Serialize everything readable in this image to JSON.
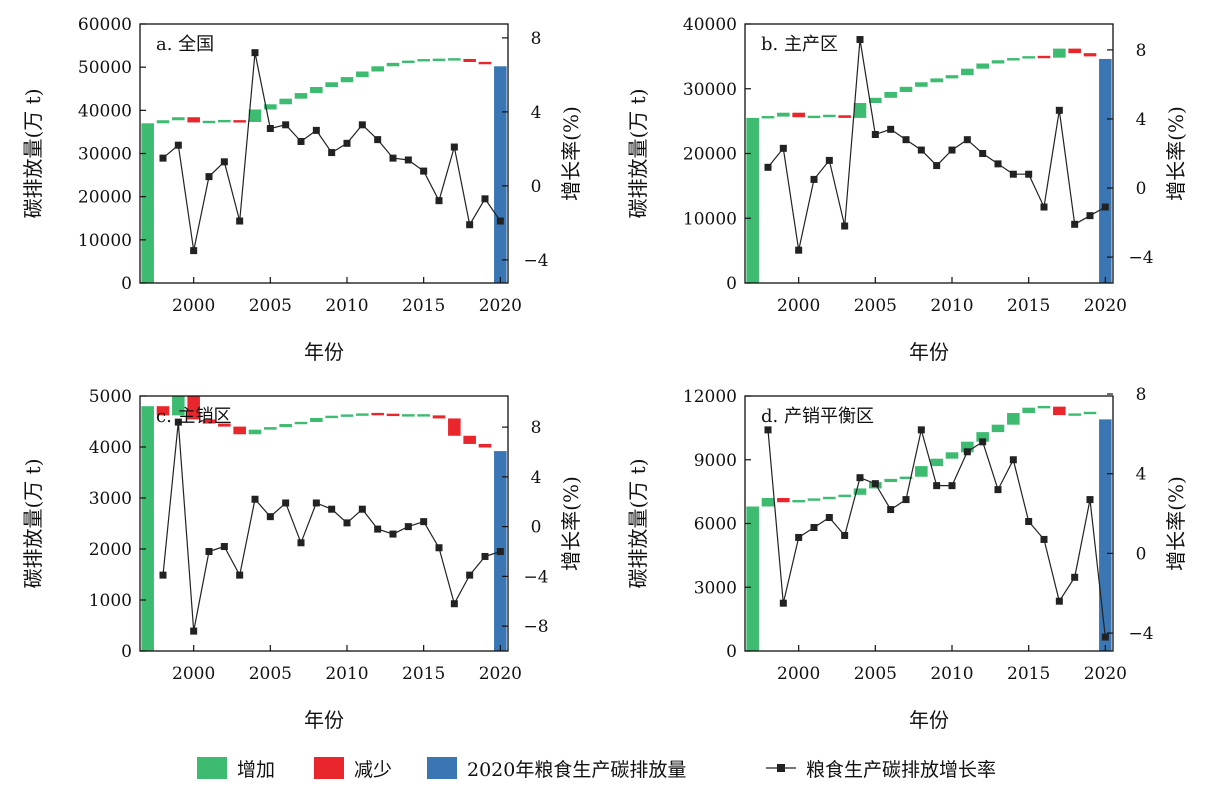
{
  "colors": {
    "increase": "#3dbb71",
    "decrease": "#e8262b",
    "total": "#3b76b4",
    "line": "#222222"
  },
  "legend": [
    {
      "key": "increase",
      "label": "增加"
    },
    {
      "key": "decrease",
      "label": "减少"
    },
    {
      "key": "total",
      "label": "2020年粮食生产碳排放量"
    },
    {
      "key": "line",
      "label": "粮食生产碳排放增长率"
    }
  ],
  "chart_data": [
    {
      "type": "waterfall+line",
      "title": "a. 全国",
      "xlabel": "年份",
      "ylabel": "碳排放量(万 t)",
      "y2label": "增长率(%)",
      "xlim": [
        1996.5,
        2020.5
      ],
      "x_ticks": [
        2000,
        2005,
        2010,
        2015,
        2020
      ],
      "ylim": [
        0,
        60000
      ],
      "y_ticks": [
        0,
        10000,
        20000,
        30000,
        40000,
        50000,
        60000
      ],
      "y2lim": [
        -5.25,
        8.75
      ],
      "y2_ticks": [
        -4,
        0,
        4,
        8
      ],
      "years": [
        1997,
        1998,
        1999,
        2000,
        2001,
        2002,
        2003,
        2004,
        2005,
        2006,
        2007,
        2008,
        2009,
        2010,
        2011,
        2012,
        2013,
        2014,
        2015,
        2016,
        2017,
        2018,
        2019,
        2020
      ],
      "emissions": [
        37000,
        37700,
        38400,
        37200,
        37400,
        37600,
        37300,
        40200,
        41400,
        42700,
        44000,
        45400,
        46500,
        47700,
        49000,
        50200,
        51000,
        51500,
        51700,
        51700,
        51900,
        51200,
        50700,
        50200
      ],
      "growth_rate": [
        null,
        1.5,
        2.2,
        -3.5,
        0.5,
        1.3,
        -1.9,
        7.2,
        3.1,
        3.3,
        2.4,
        3.0,
        1.8,
        2.3,
        3.3,
        2.5,
        1.5,
        1.4,
        0.8,
        -0.8,
        2.1,
        -2.1,
        -0.7,
        -1.9
      ]
    },
    {
      "type": "waterfall+line",
      "title": "b. 主产区",
      "xlabel": "年份",
      "ylabel": "碳排放量(万 t)",
      "y2label": "增长率(%)",
      "xlim": [
        1996.5,
        2020.5
      ],
      "x_ticks": [
        2000,
        2005,
        2010,
        2015,
        2020
      ],
      "ylim": [
        0,
        40000
      ],
      "y_ticks": [
        0,
        10000,
        20000,
        30000,
        40000
      ],
      "y2lim": [
        -5.5,
        9.5
      ],
      "y2_ticks": [
        -4,
        0,
        4,
        8
      ],
      "years": [
        1997,
        1998,
        1999,
        2000,
        2001,
        2002,
        2003,
        2004,
        2005,
        2006,
        2007,
        2008,
        2009,
        2010,
        2011,
        2012,
        2013,
        2014,
        2015,
        2016,
        2017,
        2018,
        2019,
        2020
      ],
      "emissions": [
        25500,
        25700,
        26300,
        25600,
        25700,
        25900,
        25500,
        27800,
        28600,
        29500,
        30300,
        31000,
        31600,
        32100,
        33100,
        33900,
        34400,
        34700,
        35000,
        34800,
        36200,
        35500,
        35000,
        34600
      ],
      "growth_rate": [
        null,
        1.2,
        2.3,
        -3.6,
        0.5,
        1.6,
        -2.2,
        8.6,
        3.1,
        3.4,
        2.8,
        2.2,
        1.3,
        2.2,
        2.8,
        2.0,
        1.4,
        0.8,
        0.8,
        -1.1,
        4.5,
        -2.1,
        -1.6,
        -1.1
      ]
    },
    {
      "type": "waterfall+line",
      "title": "c. 主销区",
      "xlabel": "年份",
      "ylabel": "碳排放量(万 t)",
      "y2label": "增长率(%)",
      "xlim": [
        1996.5,
        2020.5
      ],
      "x_ticks": [
        2000,
        2005,
        2010,
        2015,
        2020
      ],
      "ylim": [
        0,
        5000
      ],
      "y_ticks": [
        0,
        1000,
        2000,
        3000,
        4000,
        5000
      ],
      "y2lim": [
        -10,
        10.5
      ],
      "y2_ticks": [
        -8,
        -4,
        0,
        4,
        8
      ],
      "years": [
        1997,
        1998,
        1999,
        2000,
        2001,
        2002,
        2003,
        2004,
        2005,
        2006,
        2007,
        2008,
        2009,
        2010,
        2011,
        2012,
        2013,
        2014,
        2015,
        2016,
        2017,
        2018,
        2019,
        2020
      ],
      "emissions": [
        4800,
        4620,
        5000,
        4540,
        4460,
        4400,
        4250,
        4340,
        4390,
        4450,
        4490,
        4570,
        4610,
        4620,
        4650,
        4640,
        4620,
        4620,
        4620,
        4560,
        4220,
        4060,
        3990,
        3920
      ],
      "growth_rate": [
        null,
        -3.9,
        8.4,
        -8.4,
        -2.0,
        -1.6,
        -3.9,
        2.2,
        0.8,
        1.9,
        -1.3,
        1.9,
        1.4,
        0.3,
        1.4,
        -0.2,
        -0.6,
        0.0,
        0.4,
        -1.7,
        -6.2,
        -3.9,
        -2.4,
        -2.0
      ]
    },
    {
      "type": "waterfall+line",
      "title": "d. 产销平衡区",
      "xlabel": "年份",
      "ylabel": "碳排放量(万 t)",
      "y2label": "增长率(%)",
      "xlim": [
        1996.5,
        2020.5
      ],
      "x_ticks": [
        2000,
        2005,
        2010,
        2015,
        2020
      ],
      "ylim": [
        0,
        12000
      ],
      "y_ticks": [
        0,
        3000,
        6000,
        9000,
        12000
      ],
      "y2lim": [
        -4.9,
        7.9
      ],
      "y2_ticks": [
        -4,
        0,
        4,
        8
      ],
      "years": [
        1997,
        1998,
        1999,
        2000,
        2001,
        2002,
        2003,
        2004,
        2005,
        2006,
        2007,
        2008,
        2009,
        2010,
        2011,
        2012,
        2013,
        2014,
        2015,
        2016,
        2017,
        2018,
        2019,
        2020
      ],
      "emissions": [
        6800,
        7200,
        7000,
        7100,
        7150,
        7250,
        7350,
        7650,
        7950,
        8100,
        8200,
        8700,
        9050,
        9350,
        9850,
        10300,
        10650,
        11200,
        11450,
        11500,
        11100,
        11150,
        11250,
        10900
      ],
      "growth_rate": [
        null,
        6.2,
        -2.5,
        0.8,
        1.3,
        1.8,
        0.9,
        3.8,
        3.5,
        2.2,
        2.7,
        6.2,
        3.4,
        3.4,
        5.1,
        5.6,
        3.2,
        4.7,
        1.6,
        0.7,
        -2.4,
        -1.2,
        2.7,
        -4.2
      ]
    }
  ]
}
